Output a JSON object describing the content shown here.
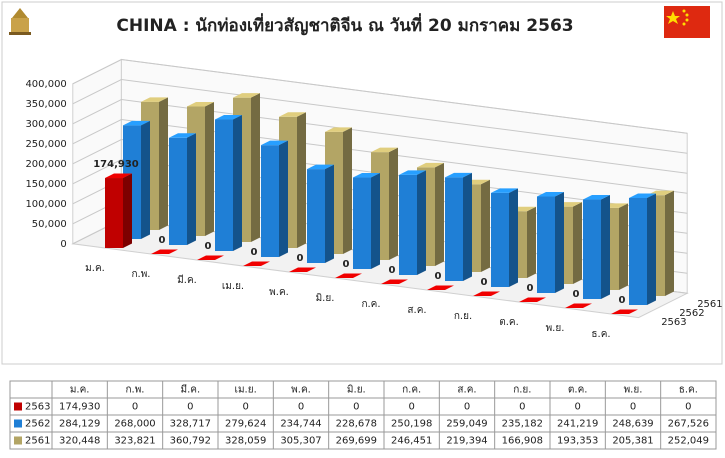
{
  "chart_data": {
    "type": "bar3d",
    "title": "CHINA : นักท่องเที่ยวสัญชาติจีน ณ วันที่ 20 มกราคม 2563",
    "categories": [
      "ม.ค.",
      "ก.พ.",
      "มี.ค.",
      "เม.ย.",
      "พ.ค.",
      "มิ.ย.",
      "ก.ค.",
      "ส.ค.",
      "ก.ย.",
      "ต.ค.",
      "พ.ย.",
      "ธ.ค."
    ],
    "series": [
      {
        "name": "2563",
        "color": "#c00000",
        "values": [
          174930,
          0,
          0,
          0,
          0,
          0,
          0,
          0,
          0,
          0,
          0,
          0
        ],
        "value_labels": [
          "174,930",
          "0",
          "0",
          "0",
          "0",
          "0",
          "0",
          "0",
          "0",
          "0",
          "0",
          "0"
        ]
      },
      {
        "name": "2562",
        "color": "#1f7fd6",
        "values": [
          284129,
          268000,
          328717,
          279624,
          234744,
          228678,
          250198,
          259049,
          235182,
          241219,
          248639,
          267526
        ],
        "value_labels": [
          "284,129",
          "268,000",
          "328,717",
          "279,624",
          "234,744",
          "228,678",
          "250,198",
          "259,049",
          "235,182",
          "241,219",
          "248,639",
          "267,526"
        ]
      },
      {
        "name": "2561",
        "color": "#b3a565",
        "values": [
          320448,
          323821,
          360792,
          328059,
          305307,
          269699,
          246451,
          219394,
          166908,
          193353,
          205381,
          252049
        ],
        "value_labels": [
          "320,448",
          "323,821",
          "360,792",
          "328,059",
          "305,307",
          "269,699",
          "246,451",
          "219,394",
          "166,908",
          "193,353",
          "205,381",
          "252,049"
        ]
      }
    ],
    "ylim": [
      0,
      400000
    ],
    "yticks": [
      0,
      {
        "value": 50000,
        "label": "50,000"
      },
      {
        "value": 100000,
        "label": "100,000"
      },
      {
        "value": 150000,
        "label": "150,000"
      },
      {
        "value": 200000,
        "label": "200,000"
      },
      {
        "value": 250000,
        "label": "250,000"
      },
      {
        "value": 300000,
        "label": "300,000"
      },
      {
        "value": 350000,
        "label": "350,000"
      },
      {
        "value": 400000,
        "label": "400,000"
      }
    ],
    "grid": true
  }
}
